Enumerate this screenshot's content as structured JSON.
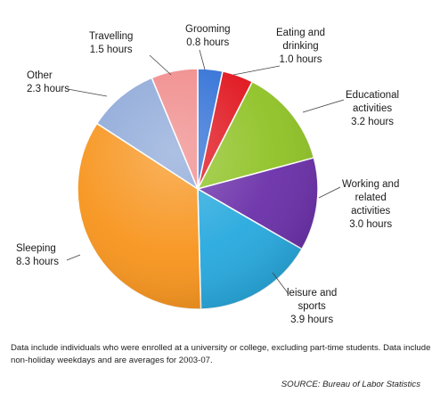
{
  "chart_data": {
    "type": "pie",
    "unit": "hours",
    "slices": [
      {
        "name": "Grooming",
        "name_lines": [
          "Grooming"
        ],
        "value": 0.8,
        "value_label": "0.8 hours",
        "color": "#2f6fd6"
      },
      {
        "name": "Eating and drinking",
        "name_lines": [
          "Eating and",
          "drinking"
        ],
        "value": 1.0,
        "value_label": "1.0 hours",
        "color": "#e0121b"
      },
      {
        "name": "Educational activities",
        "name_lines": [
          "Educational",
          "activities"
        ],
        "value": 3.2,
        "value_label": "3.2 hours",
        "color": "#8fc225"
      },
      {
        "name": "Working and related activities",
        "name_lines": [
          "Working and",
          "related",
          "activities"
        ],
        "value": 3.0,
        "value_label": "3.0 hours",
        "color": "#6a2fa8"
      },
      {
        "name": "leisure and sports",
        "name_lines": [
          "leisure and",
          "sports"
        ],
        "value": 3.9,
        "value_label": "3.9 hours",
        "color": "#27a9de"
      },
      {
        "name": "Sleeping",
        "name_lines": [
          "Sleeping"
        ],
        "value": 8.3,
        "value_label": "8.3 hours",
        "color": "#f7941d"
      },
      {
        "name": "Other",
        "name_lines": [
          "Other"
        ],
        "value": 2.3,
        "value_label": "2.3 hours",
        "color": "#8da8d8"
      },
      {
        "name": "Travelling",
        "name_lines": [
          "Travelling"
        ],
        "value": 1.5,
        "value_label": "1.5 hours",
        "color": "#f08a8a"
      }
    ]
  },
  "note": "Data include individuals who were enrolled at a university or college, excluding part-time students. Data include non-holiday weekdays and are averages for 2003-07.",
  "source": "SOURCE: Bureau of Labor Statistics"
}
